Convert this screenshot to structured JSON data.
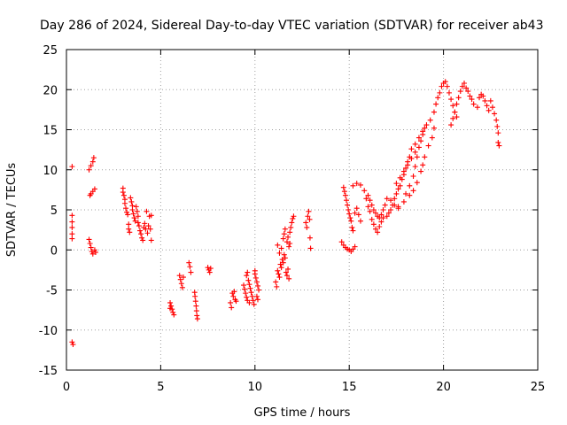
{
  "chart_data": {
    "type": "scatter",
    "title": "Day 286 of 2024, Sidereal Day-to-day VTEC variation (SDTVAR) for receiver ab43",
    "xlabel": "GPS time / hours",
    "ylabel": "SDTVAR / TECUs",
    "xlim": [
      0,
      25
    ],
    "ylim": [
      -15,
      25
    ],
    "x_ticks": [
      0,
      5,
      10,
      15,
      20,
      25
    ],
    "y_ticks": [
      -15,
      -10,
      -5,
      0,
      5,
      10,
      15,
      20,
      25
    ],
    "x_tick_labels": [
      "0",
      "5",
      "10",
      "15",
      "20",
      "25"
    ],
    "y_tick_labels": [
      "-15",
      "-10",
      "-5",
      "0",
      "5",
      "10",
      "15",
      "20",
      "25"
    ],
    "grid": true,
    "marker": "plus",
    "color": "#ff0000",
    "series": [
      {
        "name": "SDTVAR",
        "points": [
          [
            0.3,
            10.4
          ],
          [
            0.3,
            4.3
          ],
          [
            0.3,
            3.5
          ],
          [
            0.3,
            2.8
          ],
          [
            0.3,
            2.0
          ],
          [
            0.3,
            1.4
          ],
          [
            0.3,
            -11.5
          ],
          [
            0.35,
            -11.8
          ],
          [
            1.2,
            10.0
          ],
          [
            1.3,
            10.5
          ],
          [
            1.4,
            11.0
          ],
          [
            1.45,
            11.5
          ],
          [
            1.3,
            7.0
          ],
          [
            1.4,
            7.3
          ],
          [
            1.5,
            7.6
          ],
          [
            1.25,
            6.8
          ],
          [
            1.2,
            1.3
          ],
          [
            1.25,
            0.8
          ],
          [
            1.3,
            0.3
          ],
          [
            1.35,
            -0.2
          ],
          [
            1.4,
            -0.5
          ],
          [
            1.5,
            0.0
          ],
          [
            1.55,
            -0.3
          ],
          [
            3.0,
            7.7
          ],
          [
            3.0,
            7.2
          ],
          [
            3.05,
            6.8
          ],
          [
            3.1,
            6.3
          ],
          [
            3.1,
            5.8
          ],
          [
            3.15,
            5.2
          ],
          [
            3.2,
            4.7
          ],
          [
            3.25,
            4.4
          ],
          [
            3.3,
            3.2
          ],
          [
            3.3,
            2.6
          ],
          [
            3.35,
            2.2
          ],
          [
            3.4,
            6.5
          ],
          [
            3.45,
            6.0
          ],
          [
            3.5,
            5.5
          ],
          [
            3.5,
            5.0
          ],
          [
            3.55,
            4.5
          ],
          [
            3.6,
            4.0
          ],
          [
            3.65,
            3.6
          ],
          [
            3.7,
            5.4
          ],
          [
            3.75,
            4.8
          ],
          [
            3.8,
            4.2
          ],
          [
            3.8,
            3.4
          ],
          [
            3.85,
            3.0
          ],
          [
            3.9,
            2.4
          ],
          [
            3.95,
            2.0
          ],
          [
            4.0,
            1.5
          ],
          [
            4.05,
            1.2
          ],
          [
            4.1,
            2.8
          ],
          [
            4.15,
            3.3
          ],
          [
            4.2,
            2.6
          ],
          [
            4.25,
            4.8
          ],
          [
            4.3,
            2.1
          ],
          [
            4.35,
            3.0
          ],
          [
            4.4,
            4.2
          ],
          [
            4.45,
            2.6
          ],
          [
            4.5,
            4.3
          ],
          [
            4.5,
            1.2
          ],
          [
            5.5,
            -6.6
          ],
          [
            5.55,
            -7.0
          ],
          [
            5.6,
            -7.4
          ],
          [
            5.65,
            -7.8
          ],
          [
            5.7,
            -8.1
          ],
          [
            5.5,
            -7.3
          ],
          [
            6.0,
            -3.2
          ],
          [
            6.05,
            -3.7
          ],
          [
            6.1,
            -4.2
          ],
          [
            6.15,
            -4.7
          ],
          [
            6.2,
            -3.4
          ],
          [
            6.5,
            -1.6
          ],
          [
            6.55,
            -2.1
          ],
          [
            6.6,
            -2.8
          ],
          [
            6.8,
            -5.3
          ],
          [
            6.82,
            -5.8
          ],
          [
            6.85,
            -6.4
          ],
          [
            6.88,
            -7.0
          ],
          [
            6.9,
            -7.6
          ],
          [
            6.92,
            -8.2
          ],
          [
            6.95,
            -8.6
          ],
          [
            7.5,
            -2.2
          ],
          [
            7.55,
            -2.5
          ],
          [
            7.6,
            -2.8
          ],
          [
            7.65,
            -2.3
          ],
          [
            8.7,
            -6.6
          ],
          [
            8.75,
            -7.2
          ],
          [
            8.8,
            -5.4
          ],
          [
            8.85,
            -5.8
          ],
          [
            8.9,
            -5.2
          ],
          [
            8.95,
            -6.2
          ],
          [
            9.0,
            -6.4
          ],
          [
            9.4,
            -4.4
          ],
          [
            9.45,
            -4.9
          ],
          [
            9.5,
            -5.4
          ],
          [
            9.55,
            -5.9
          ],
          [
            9.6,
            -6.3
          ],
          [
            9.65,
            -3.8
          ],
          [
            9.7,
            -4.3
          ],
          [
            9.75,
            -4.8
          ],
          [
            9.8,
            -5.3
          ],
          [
            9.85,
            -5.8
          ],
          [
            9.9,
            -6.3
          ],
          [
            9.95,
            -6.8
          ],
          [
            10.0,
            -3.0
          ],
          [
            10.05,
            -3.5
          ],
          [
            10.1,
            -4.0
          ],
          [
            10.15,
            -4.5
          ],
          [
            10.2,
            -5.0
          ],
          [
            10.0,
            -2.6
          ],
          [
            9.55,
            -3.2
          ],
          [
            9.6,
            -2.8
          ],
          [
            9.7,
            -6.6
          ],
          [
            10.1,
            -5.8
          ],
          [
            10.15,
            -6.2
          ],
          [
            11.1,
            -4.0
          ],
          [
            11.15,
            -4.6
          ],
          [
            11.2,
            -2.6
          ],
          [
            11.25,
            -3.0
          ],
          [
            11.3,
            -3.4
          ],
          [
            11.35,
            -1.8
          ],
          [
            11.4,
            -2.2
          ],
          [
            11.45,
            -1.2
          ],
          [
            11.5,
            -1.6
          ],
          [
            11.55,
            -0.6
          ],
          [
            11.6,
            -1.0
          ],
          [
            11.65,
            -2.8
          ],
          [
            11.7,
            -3.2
          ],
          [
            11.75,
            -2.4
          ],
          [
            11.8,
            -3.6
          ],
          [
            11.3,
            -0.4
          ],
          [
            11.4,
            0.2
          ],
          [
            11.2,
            0.6
          ],
          [
            11.8,
            0.4
          ],
          [
            11.85,
            0.8
          ],
          [
            11.5,
            1.4
          ],
          [
            11.55,
            2.0
          ],
          [
            11.6,
            2.6
          ],
          [
            11.7,
            1.0
          ],
          [
            11.75,
            1.6
          ],
          [
            11.85,
            2.2
          ],
          [
            11.9,
            2.8
          ],
          [
            11.95,
            3.4
          ],
          [
            12.0,
            3.9
          ],
          [
            12.05,
            4.2
          ],
          [
            12.7,
            3.4
          ],
          [
            12.75,
            2.8
          ],
          [
            12.8,
            4.2
          ],
          [
            12.85,
            4.8
          ],
          [
            12.9,
            3.8
          ],
          [
            12.92,
            1.5
          ],
          [
            12.95,
            0.2
          ],
          [
            14.6,
            1.0
          ],
          [
            14.7,
            0.6
          ],
          [
            14.8,
            0.3
          ],
          [
            14.9,
            0.1
          ],
          [
            15.0,
            0.0
          ],
          [
            15.1,
            -0.2
          ],
          [
            15.2,
            0.1
          ],
          [
            15.3,
            0.4
          ],
          [
            14.7,
            7.8
          ],
          [
            14.75,
            7.3
          ],
          [
            14.8,
            6.8
          ],
          [
            14.85,
            6.2
          ],
          [
            14.9,
            5.6
          ],
          [
            14.95,
            5.0
          ],
          [
            15.0,
            4.5
          ],
          [
            15.05,
            4.0
          ],
          [
            15.1,
            3.6
          ],
          [
            15.15,
            2.8
          ],
          [
            15.2,
            2.4
          ],
          [
            15.3,
            4.6
          ],
          [
            15.4,
            5.2
          ],
          [
            15.5,
            4.4
          ],
          [
            15.6,
            3.6
          ],
          [
            15.2,
            8.0
          ],
          [
            15.4,
            8.3
          ],
          [
            15.6,
            8.1
          ],
          [
            15.8,
            7.4
          ],
          [
            15.9,
            6.4
          ],
          [
            16.0,
            5.4
          ],
          [
            16.1,
            4.8
          ],
          [
            16.2,
            3.8
          ],
          [
            16.3,
            3.2
          ],
          [
            16.4,
            2.6
          ],
          [
            16.5,
            2.2
          ],
          [
            16.6,
            2.9
          ],
          [
            16.7,
            3.5
          ],
          [
            16.8,
            4.0
          ],
          [
            16.0,
            6.8
          ],
          [
            16.1,
            6.2
          ],
          [
            16.2,
            5.6
          ],
          [
            16.3,
            5.0
          ],
          [
            16.4,
            4.6
          ],
          [
            16.5,
            4.2
          ],
          [
            16.6,
            4.0
          ],
          [
            16.7,
            4.4
          ],
          [
            16.8,
            5.0
          ],
          [
            16.9,
            5.6
          ],
          [
            17.0,
            6.4
          ],
          [
            17.2,
            6.2
          ],
          [
            17.4,
            5.6
          ],
          [
            17.6,
            5.2
          ],
          [
            17.0,
            4.2
          ],
          [
            17.1,
            4.6
          ],
          [
            17.2,
            5.0
          ],
          [
            17.3,
            5.6
          ],
          [
            17.4,
            6.4
          ],
          [
            17.5,
            7.0
          ],
          [
            17.6,
            7.6
          ],
          [
            17.7,
            8.0
          ],
          [
            17.8,
            8.8
          ],
          [
            17.9,
            9.4
          ],
          [
            18.0,
            10.2
          ],
          [
            18.1,
            11.0
          ],
          [
            18.2,
            11.6
          ],
          [
            17.5,
            8.3
          ],
          [
            17.7,
            9.0
          ],
          [
            17.9,
            9.8
          ],
          [
            18.1,
            10.6
          ],
          [
            18.3,
            11.4
          ],
          [
            18.5,
            12.2
          ],
          [
            18.0,
            7.0
          ],
          [
            18.2,
            8.0
          ],
          [
            18.4,
            9.2
          ],
          [
            18.5,
            10.4
          ],
          [
            18.6,
            11.6
          ],
          [
            18.7,
            12.8
          ],
          [
            18.8,
            13.6
          ],
          [
            18.9,
            14.4
          ],
          [
            19.0,
            15.2
          ],
          [
            18.3,
            12.6
          ],
          [
            18.5,
            13.2
          ],
          [
            18.7,
            14.0
          ],
          [
            18.9,
            14.8
          ],
          [
            19.1,
            15.6
          ],
          [
            19.3,
            16.2
          ],
          [
            19.5,
            17.2
          ],
          [
            19.6,
            18.2
          ],
          [
            19.7,
            19.0
          ],
          [
            19.8,
            19.6
          ],
          [
            19.9,
            20.4
          ],
          [
            20.0,
            20.8
          ],
          [
            20.1,
            21.0
          ],
          [
            20.2,
            20.4
          ],
          [
            20.3,
            19.6
          ],
          [
            20.4,
            18.8
          ],
          [
            20.5,
            18.0
          ],
          [
            20.6,
            17.2
          ],
          [
            20.7,
            16.6
          ],
          [
            20.4,
            15.6
          ],
          [
            20.5,
            16.4
          ],
          [
            20.6,
            17.2
          ],
          [
            20.7,
            18.2
          ],
          [
            20.8,
            19.0
          ],
          [
            20.9,
            19.8
          ],
          [
            21.0,
            20.4
          ],
          [
            21.1,
            20.8
          ],
          [
            21.2,
            20.2
          ],
          [
            21.3,
            19.8
          ],
          [
            21.4,
            19.2
          ],
          [
            21.5,
            18.8
          ],
          [
            21.6,
            18.2
          ],
          [
            21.8,
            17.8
          ],
          [
            21.9,
            19.0
          ],
          [
            22.0,
            19.4
          ],
          [
            22.1,
            19.2
          ],
          [
            22.2,
            18.6
          ],
          [
            22.3,
            18.0
          ],
          [
            22.4,
            17.4
          ],
          [
            22.5,
            18.6
          ],
          [
            22.6,
            17.8
          ],
          [
            22.7,
            17.0
          ],
          [
            22.8,
            16.2
          ],
          [
            22.85,
            15.4
          ],
          [
            22.9,
            14.6
          ],
          [
            22.9,
            13.4
          ],
          [
            22.95,
            13.0
          ],
          [
            19.5,
            15.2
          ],
          [
            19.4,
            14.0
          ],
          [
            19.2,
            13.0
          ],
          [
            19.0,
            11.6
          ],
          [
            18.9,
            10.6
          ],
          [
            18.8,
            9.8
          ],
          [
            18.6,
            8.4
          ],
          [
            18.4,
            7.4
          ],
          [
            18.2,
            6.8
          ],
          [
            17.9,
            6.0
          ],
          [
            17.6,
            5.4
          ]
        ]
      }
    ]
  }
}
